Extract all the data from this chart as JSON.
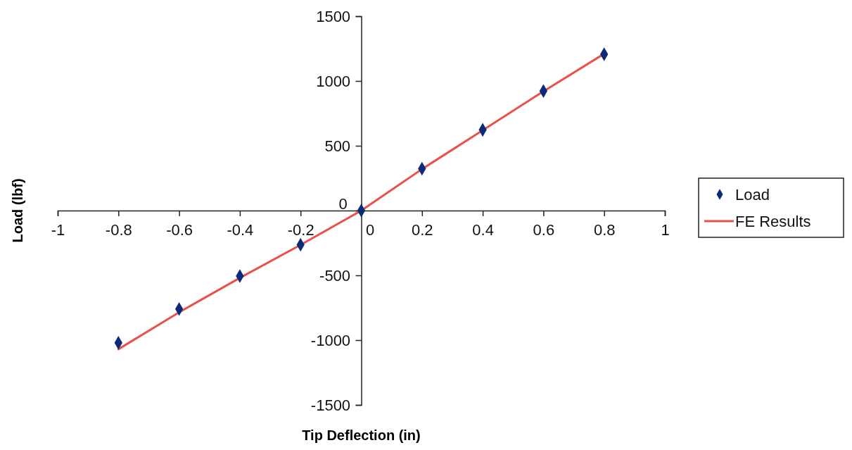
{
  "chart_data": {
    "type": "scatter",
    "xlabel": "Tip Deflection (in)",
    "ylabel": "Load (lbf)",
    "xlim": [
      -1,
      1
    ],
    "xticks": [
      -1,
      -0.8,
      -0.6,
      -0.4,
      -0.2,
      0,
      0.2,
      0.4,
      0.6,
      0.8,
      1
    ],
    "ylim": [
      -1500,
      1500
    ],
    "yticks": [
      -1500,
      -1000,
      -500,
      0,
      500,
      1000,
      1500
    ],
    "x": [
      -0.8,
      -0.6,
      -0.4,
      -0.2,
      0,
      0.2,
      0.4,
      0.6,
      0.8
    ],
    "legend": "right",
    "grid": false,
    "series": [
      {
        "name": "Load",
        "type": "scatter",
        "marker": "diamond",
        "color": "#0b2a78",
        "values": [
          -1020,
          -760,
          -505,
          -264,
          0,
          323,
          623,
          923,
          1206
        ]
      },
      {
        "name": "FE Results",
        "type": "line",
        "marker": "none",
        "line_style": "solid",
        "color": "#e8524a",
        "values": [
          -1070,
          -785,
          -520,
          -265,
          0,
          320,
          620,
          920,
          1210
        ]
      }
    ]
  }
}
